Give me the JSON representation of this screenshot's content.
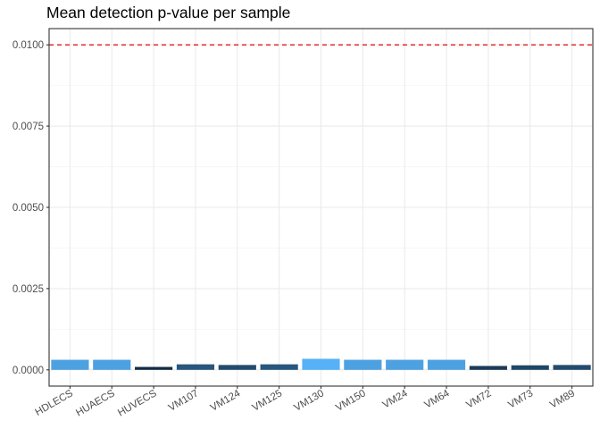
{
  "chart_data": {
    "type": "bar",
    "title": "Mean detection p-value per sample",
    "xlabel": "",
    "ylabel": "",
    "categories": [
      "HDLECS",
      "HUAECS",
      "HUVECS",
      "VM107",
      "VM124",
      "VM125",
      "VM130",
      "VM150",
      "VM24",
      "VM64",
      "VM72",
      "VM73",
      "VM89"
    ],
    "values": [
      0.00031,
      0.00031,
      9e-05,
      0.00017,
      0.00015,
      0.00017,
      0.00034,
      0.00031,
      0.00031,
      0.00031,
      0.00012,
      0.00014,
      0.00015
    ],
    "ylim": [
      -0.0005,
      0.0105
    ],
    "yticks": [
      0,
      0.0025,
      0.005,
      0.0075,
      0.01
    ],
    "ytick_labels": [
      "0.0000",
      "0.0025",
      "0.0050",
      "0.0075",
      "0.0100"
    ],
    "threshold": {
      "value": 0.01,
      "color": "#e41a1c",
      "style": "dashed"
    },
    "fill_scale": {
      "low": "#132b43",
      "high": "#56b1f7"
    },
    "grid": true,
    "legend": "none"
  }
}
